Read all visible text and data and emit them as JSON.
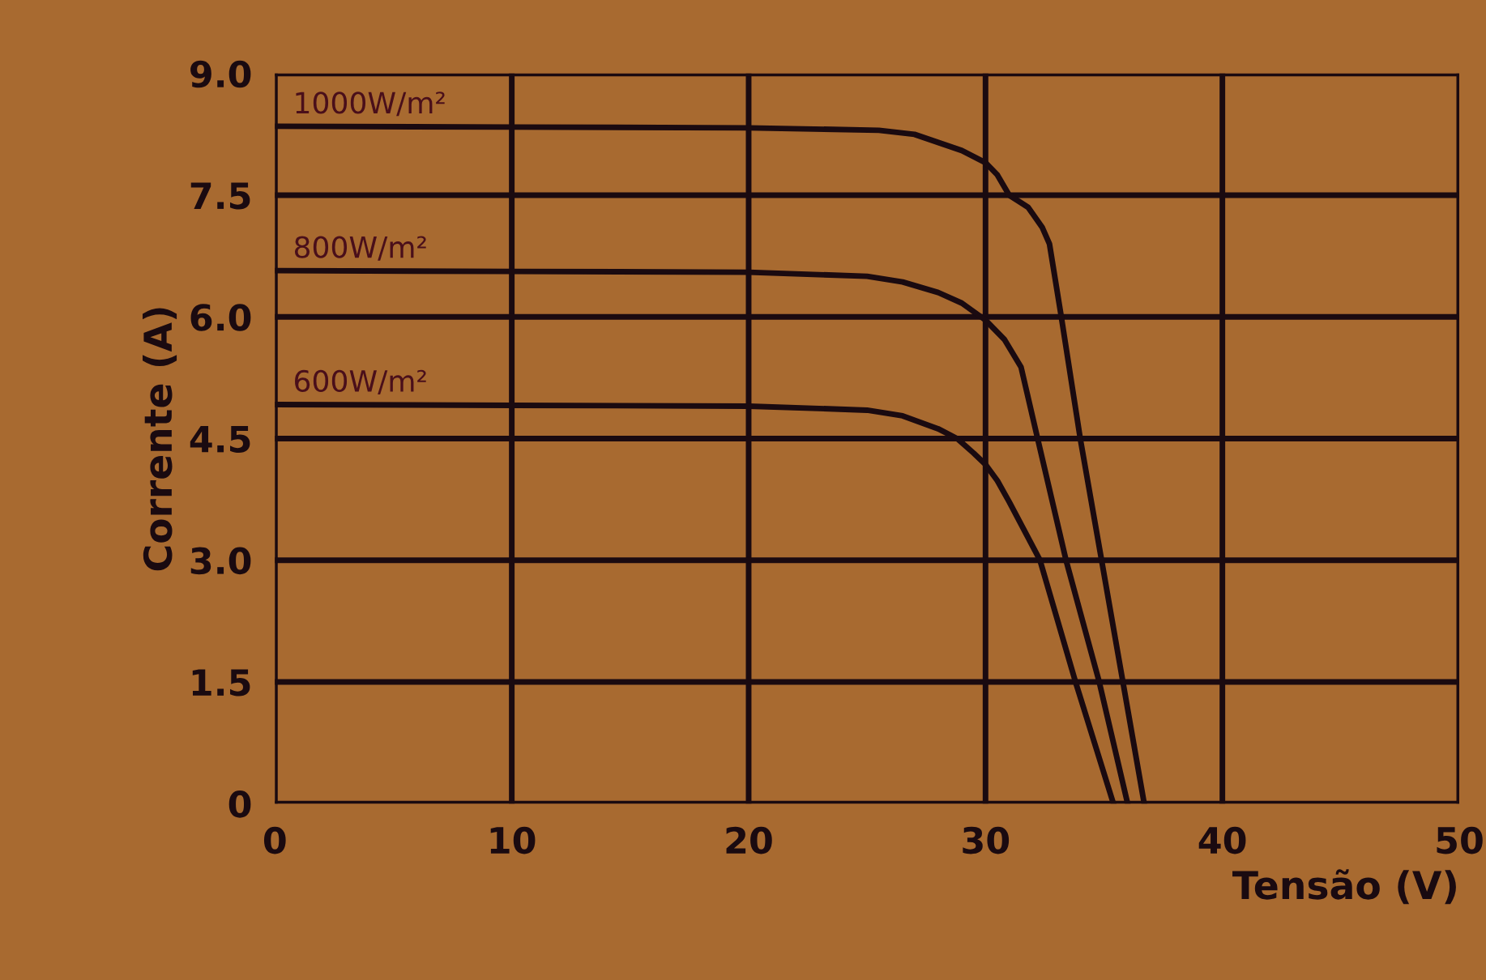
{
  "chart_data": {
    "type": "line",
    "xlabel": "Tensão (V)",
    "ylabel": "Corrente (A)",
    "xlim": [
      0,
      50
    ],
    "ylim": [
      0,
      9
    ],
    "xticks": [
      0,
      10,
      20,
      30,
      40,
      50
    ],
    "yticks": [
      {
        "value": 0,
        "label": "0"
      },
      {
        "value": 1.5,
        "label": "1.5"
      },
      {
        "value": 3,
        "label": "3.0"
      },
      {
        "value": 4.5,
        "label": "4.5"
      },
      {
        "value": 6,
        "label": "6.0"
      },
      {
        "value": 7.5,
        "label": "7.5"
      },
      {
        "value": 9,
        "label": "9.0"
      }
    ],
    "grid": true,
    "marker": "none",
    "line_style": "solid",
    "series": [
      {
        "color": "#1a0a10",
        "x": [
          0,
          10,
          20,
          25.5,
          27,
          28,
          29,
          30,
          30.5,
          31,
          31.8,
          32.4,
          32.7,
          33.2,
          34.0,
          34.9,
          35.8,
          36.7
        ],
        "values": [
          8.35,
          8.34,
          8.33,
          8.3,
          8.25,
          8.15,
          8.05,
          7.9,
          7.75,
          7.5,
          7.35,
          7.1,
          6.9,
          6.0,
          4.5,
          3.0,
          1.5,
          0
        ]
      },
      {
        "color": "#1a0a10",
        "x": [
          0,
          10,
          20,
          25,
          26.5,
          28,
          29,
          30,
          30.8,
          31.5,
          32.2,
          33.4,
          34.8,
          36.0
        ],
        "values": [
          6.57,
          6.56,
          6.55,
          6.5,
          6.43,
          6.3,
          6.17,
          5.96,
          5.72,
          5.38,
          4.5,
          3.0,
          1.5,
          0
        ]
      },
      {
        "color": "#1a0a10",
        "x": [
          0,
          10,
          20,
          25,
          26.5,
          28,
          28.8,
          29.5,
          30,
          30.5,
          31.0,
          32.3,
          33.8,
          35.4
        ],
        "values": [
          4.92,
          4.91,
          4.9,
          4.85,
          4.78,
          4.62,
          4.5,
          4.32,
          4.18,
          3.98,
          3.72,
          3.0,
          1.5,
          0
        ]
      }
    ],
    "annotations": [
      "1000W/m²",
      "800W/m²",
      "600W/m²"
    ]
  }
}
